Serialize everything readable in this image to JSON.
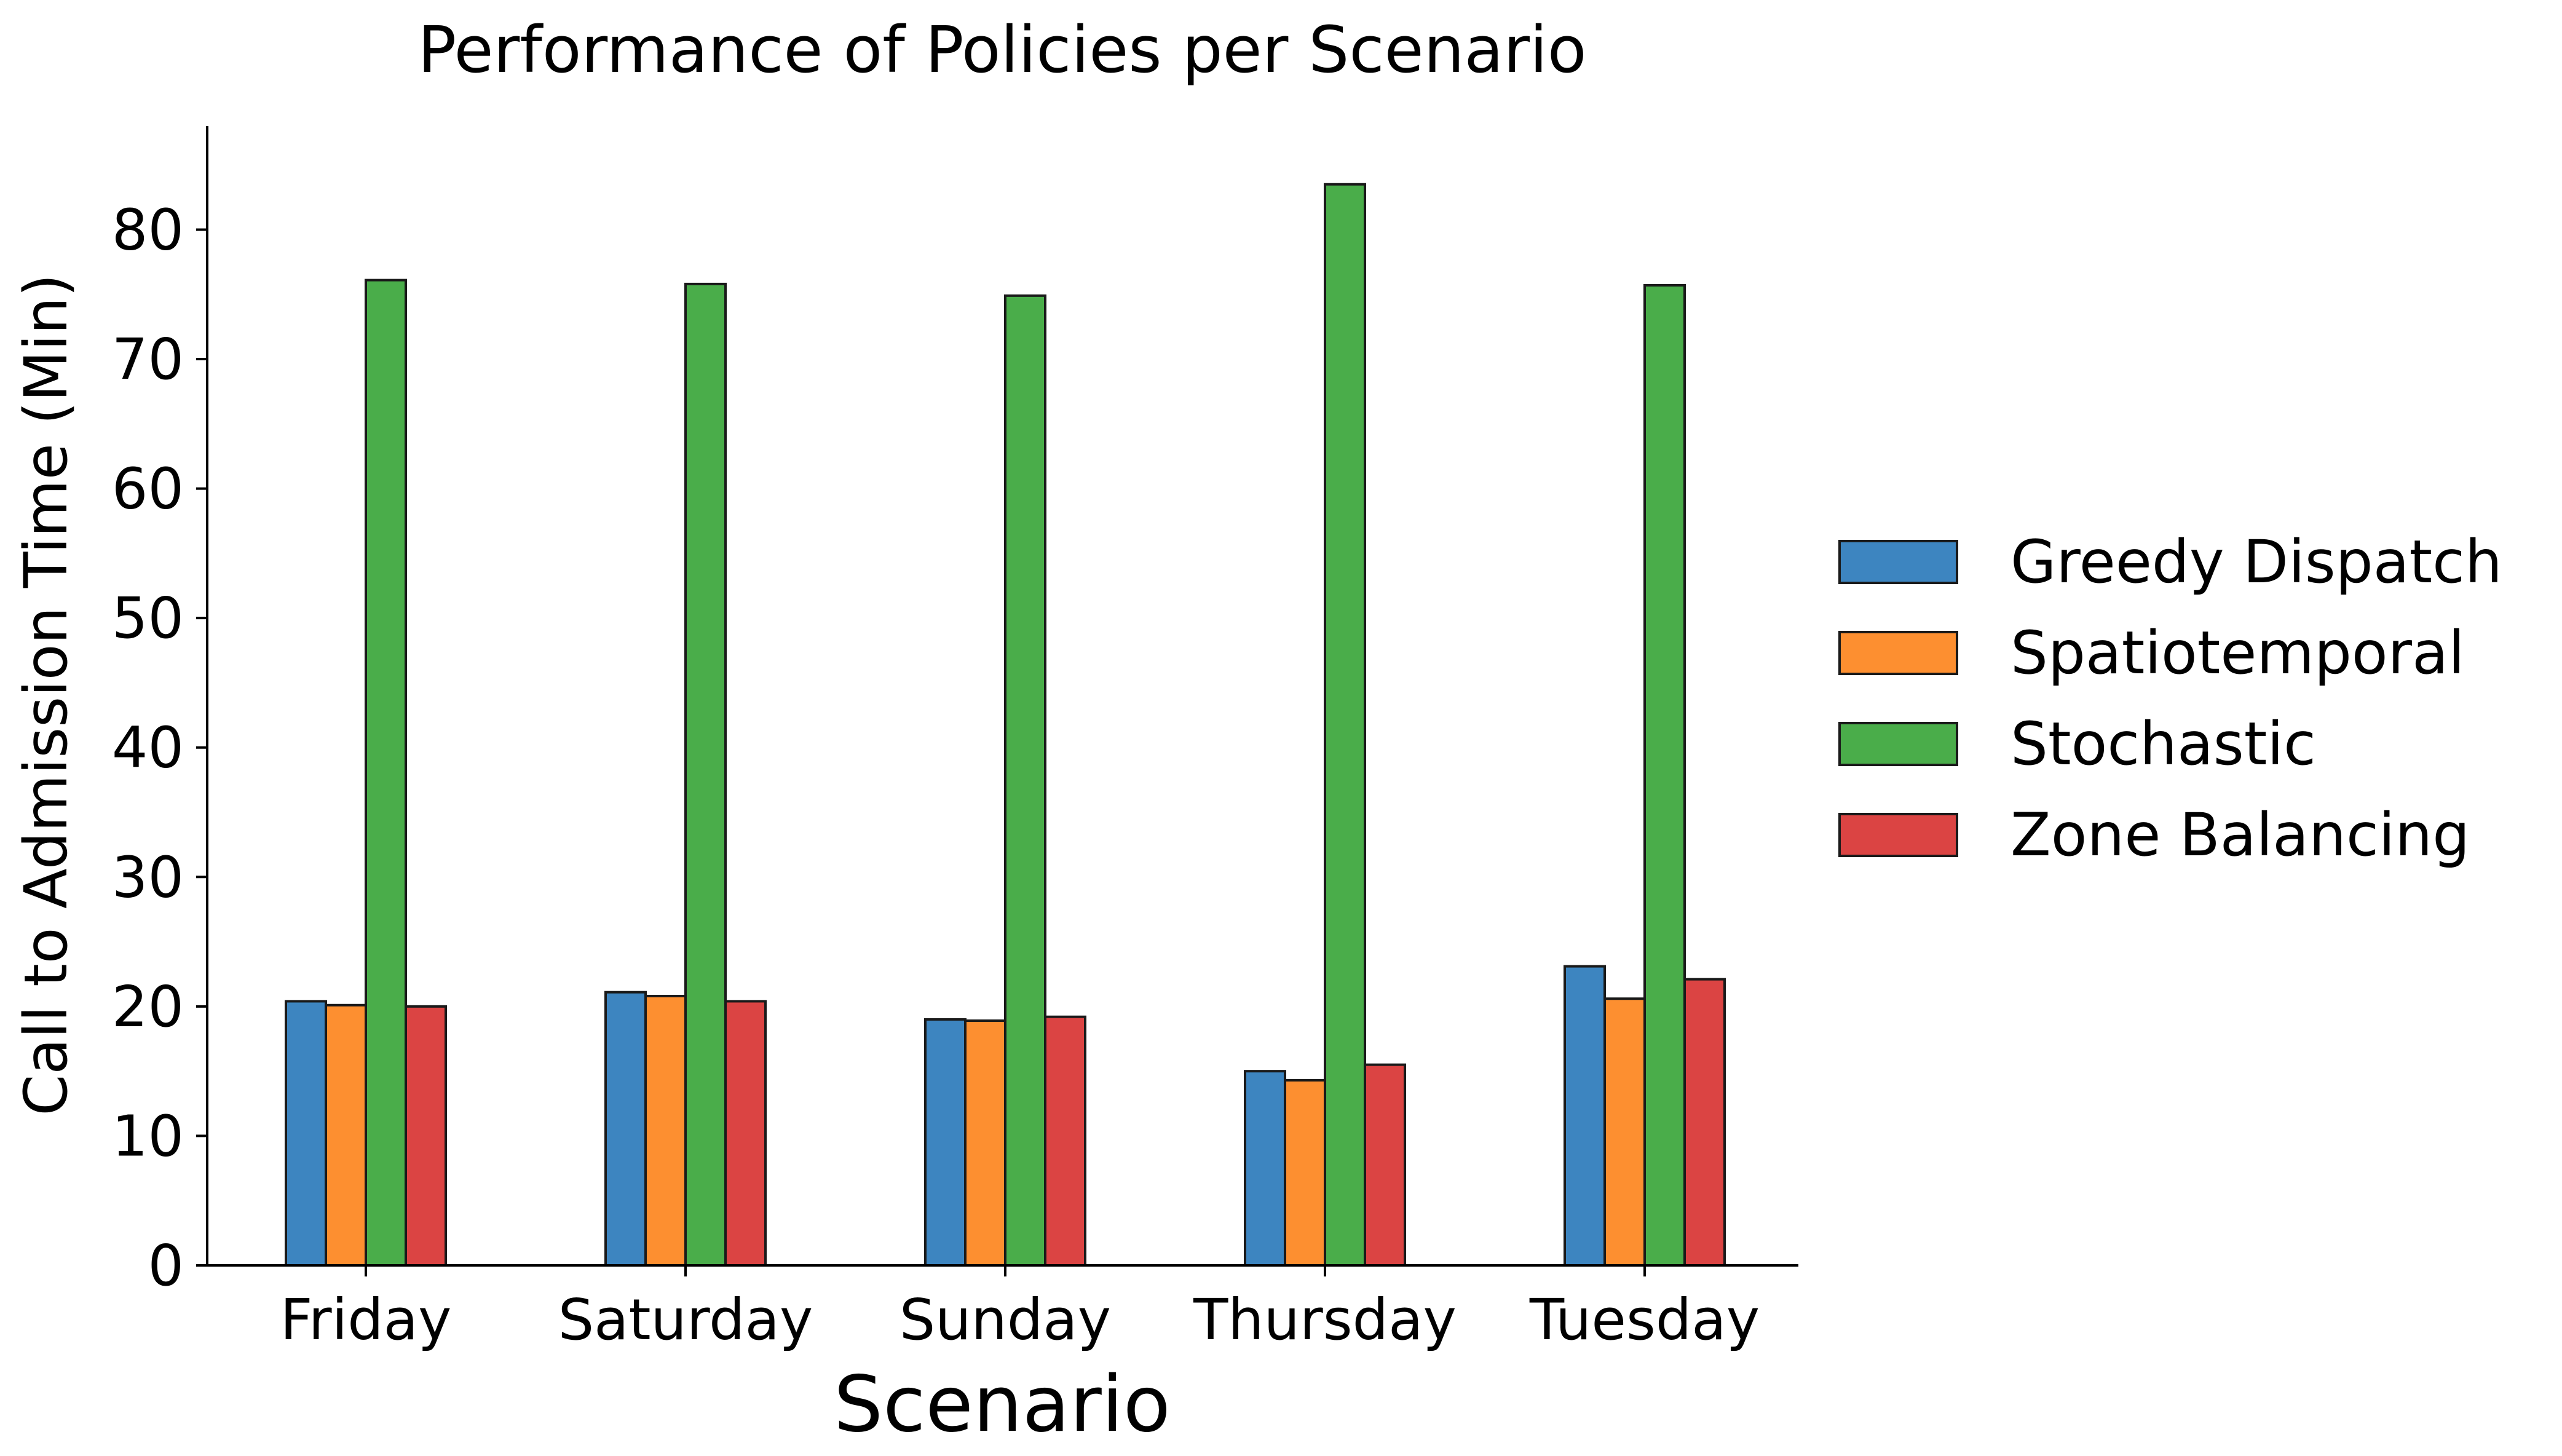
{
  "chart_data": {
    "type": "bar",
    "title": "Performance of Policies per Scenario",
    "xlabel": "Scenario",
    "ylabel": "Call to Admission Time (Min)",
    "categories": [
      "Friday",
      "Saturday",
      "Sunday",
      "Thursday",
      "Tuesday"
    ],
    "yticks": [
      0,
      10,
      20,
      30,
      40,
      50,
      60,
      70,
      80
    ],
    "ylim": [
      0,
      88
    ],
    "grid": false,
    "legend_position": "right",
    "series": [
      {
        "name": "Greedy Dispatch",
        "color": "#3d85c0",
        "values": [
          20.4,
          21.1,
          19.0,
          15.0,
          23.1
        ]
      },
      {
        "name": "Spatiotemporal",
        "color": "#fd8f30",
        "values": [
          20.1,
          20.8,
          18.9,
          14.3,
          20.6
        ]
      },
      {
        "name": "Stochastic",
        "color": "#4aad4a",
        "values": [
          76.1,
          75.8,
          74.9,
          83.5,
          75.7
        ]
      },
      {
        "name": "Zone Balancing",
        "color": "#db4443",
        "values": [
          20.0,
          20.4,
          19.2,
          15.5,
          22.1
        ]
      }
    ]
  }
}
